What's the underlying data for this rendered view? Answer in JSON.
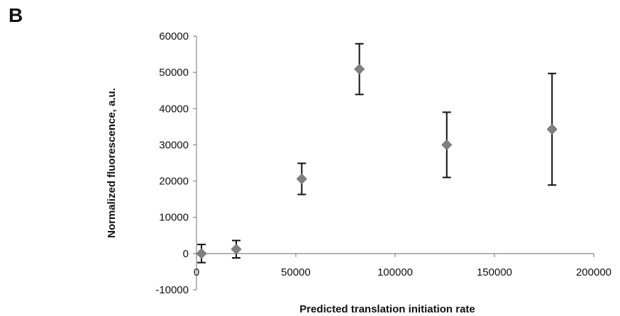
{
  "panel_label": "B",
  "chart_data": {
    "type": "scatter",
    "title": "",
    "xlabel": "Predicted  translation  initiation  rate",
    "ylabel": "Normalized  fluorescence,   a.u.",
    "xlim": [
      0,
      200000
    ],
    "ylim": [
      -10000,
      60000
    ],
    "xticks": [
      0,
      50000,
      100000,
      150000,
      200000
    ],
    "yticks": [
      -10000,
      0,
      10000,
      20000,
      30000,
      40000,
      50000,
      60000
    ],
    "xtick_labels": [
      "0",
      "50000",
      "100000",
      "150000",
      "200000"
    ],
    "ytick_labels": [
      "-10000",
      "0",
      "10000",
      "20000",
      "30000",
      "40000",
      "50000",
      "60000"
    ],
    "grid": false,
    "legend": "none",
    "marker": "diamond",
    "marker_color": "#808080",
    "errorbar_color": "#111111",
    "points": [
      {
        "x": 2500,
        "y": 0,
        "err": 2500
      },
      {
        "x": 20000,
        "y": 1200,
        "err": 2400
      },
      {
        "x": 53000,
        "y": 20600,
        "err": 4300
      },
      {
        "x": 82000,
        "y": 50900,
        "err": 7000
      },
      {
        "x": 126000,
        "y": 30000,
        "err": 9000
      },
      {
        "x": 179000,
        "y": 34300,
        "err": 15400
      }
    ]
  }
}
